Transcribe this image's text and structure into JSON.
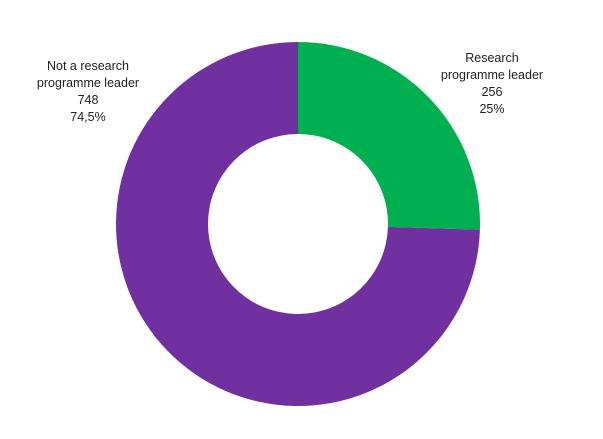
{
  "chart_data": {
    "type": "donut",
    "categories": [
      "Research programme leader",
      "Not a research programme leader"
    ],
    "values": [
      256,
      748
    ],
    "percent_labels": [
      "25%",
      "74,5%"
    ],
    "colors": [
      "#00b050",
      "#7030a0"
    ]
  }
}
